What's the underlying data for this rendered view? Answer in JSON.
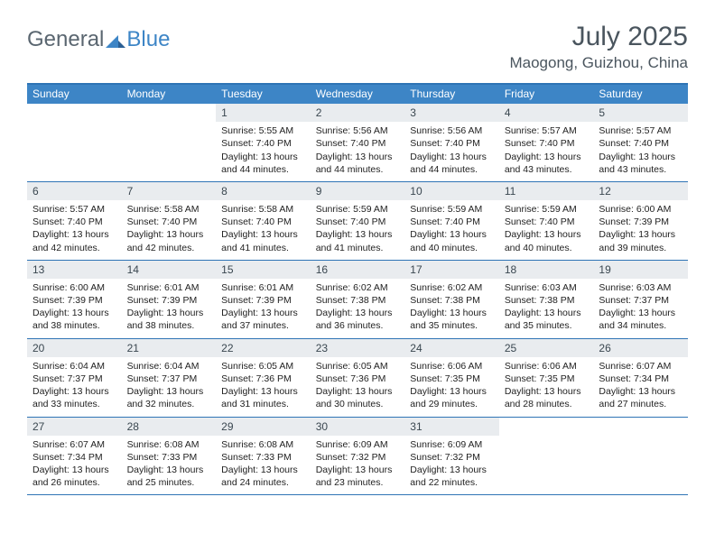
{
  "logo": {
    "part1": "General",
    "part2": "Blue"
  },
  "title": "July 2025",
  "location": "Maogong, Guizhou, China",
  "colors": {
    "header_bg": "#3d85c6",
    "header_text": "#ffffff",
    "daynum_bg": "#e9ecef",
    "border": "#2f74b5",
    "body_text": "#222222",
    "title_text": "#4a555e"
  },
  "day_names": [
    "Sunday",
    "Monday",
    "Tuesday",
    "Wednesday",
    "Thursday",
    "Friday",
    "Saturday"
  ],
  "weeks": [
    [
      null,
      null,
      {
        "n": "1",
        "sr": "5:55 AM",
        "ss": "7:40 PM",
        "dl": "13 hours and 44 minutes."
      },
      {
        "n": "2",
        "sr": "5:56 AM",
        "ss": "7:40 PM",
        "dl": "13 hours and 44 minutes."
      },
      {
        "n": "3",
        "sr": "5:56 AM",
        "ss": "7:40 PM",
        "dl": "13 hours and 44 minutes."
      },
      {
        "n": "4",
        "sr": "5:57 AM",
        "ss": "7:40 PM",
        "dl": "13 hours and 43 minutes."
      },
      {
        "n": "5",
        "sr": "5:57 AM",
        "ss": "7:40 PM",
        "dl": "13 hours and 43 minutes."
      }
    ],
    [
      {
        "n": "6",
        "sr": "5:57 AM",
        "ss": "7:40 PM",
        "dl": "13 hours and 42 minutes."
      },
      {
        "n": "7",
        "sr": "5:58 AM",
        "ss": "7:40 PM",
        "dl": "13 hours and 42 minutes."
      },
      {
        "n": "8",
        "sr": "5:58 AM",
        "ss": "7:40 PM",
        "dl": "13 hours and 41 minutes."
      },
      {
        "n": "9",
        "sr": "5:59 AM",
        "ss": "7:40 PM",
        "dl": "13 hours and 41 minutes."
      },
      {
        "n": "10",
        "sr": "5:59 AM",
        "ss": "7:40 PM",
        "dl": "13 hours and 40 minutes."
      },
      {
        "n": "11",
        "sr": "5:59 AM",
        "ss": "7:40 PM",
        "dl": "13 hours and 40 minutes."
      },
      {
        "n": "12",
        "sr": "6:00 AM",
        "ss": "7:39 PM",
        "dl": "13 hours and 39 minutes."
      }
    ],
    [
      {
        "n": "13",
        "sr": "6:00 AM",
        "ss": "7:39 PM",
        "dl": "13 hours and 38 minutes."
      },
      {
        "n": "14",
        "sr": "6:01 AM",
        "ss": "7:39 PM",
        "dl": "13 hours and 38 minutes."
      },
      {
        "n": "15",
        "sr": "6:01 AM",
        "ss": "7:39 PM",
        "dl": "13 hours and 37 minutes."
      },
      {
        "n": "16",
        "sr": "6:02 AM",
        "ss": "7:38 PM",
        "dl": "13 hours and 36 minutes."
      },
      {
        "n": "17",
        "sr": "6:02 AM",
        "ss": "7:38 PM",
        "dl": "13 hours and 35 minutes."
      },
      {
        "n": "18",
        "sr": "6:03 AM",
        "ss": "7:38 PM",
        "dl": "13 hours and 35 minutes."
      },
      {
        "n": "19",
        "sr": "6:03 AM",
        "ss": "7:37 PM",
        "dl": "13 hours and 34 minutes."
      }
    ],
    [
      {
        "n": "20",
        "sr": "6:04 AM",
        "ss": "7:37 PM",
        "dl": "13 hours and 33 minutes."
      },
      {
        "n": "21",
        "sr": "6:04 AM",
        "ss": "7:37 PM",
        "dl": "13 hours and 32 minutes."
      },
      {
        "n": "22",
        "sr": "6:05 AM",
        "ss": "7:36 PM",
        "dl": "13 hours and 31 minutes."
      },
      {
        "n": "23",
        "sr": "6:05 AM",
        "ss": "7:36 PM",
        "dl": "13 hours and 30 minutes."
      },
      {
        "n": "24",
        "sr": "6:06 AM",
        "ss": "7:35 PM",
        "dl": "13 hours and 29 minutes."
      },
      {
        "n": "25",
        "sr": "6:06 AM",
        "ss": "7:35 PM",
        "dl": "13 hours and 28 minutes."
      },
      {
        "n": "26",
        "sr": "6:07 AM",
        "ss": "7:34 PM",
        "dl": "13 hours and 27 minutes."
      }
    ],
    [
      {
        "n": "27",
        "sr": "6:07 AM",
        "ss": "7:34 PM",
        "dl": "13 hours and 26 minutes."
      },
      {
        "n": "28",
        "sr": "6:08 AM",
        "ss": "7:33 PM",
        "dl": "13 hours and 25 minutes."
      },
      {
        "n": "29",
        "sr": "6:08 AM",
        "ss": "7:33 PM",
        "dl": "13 hours and 24 minutes."
      },
      {
        "n": "30",
        "sr": "6:09 AM",
        "ss": "7:32 PM",
        "dl": "13 hours and 23 minutes."
      },
      {
        "n": "31",
        "sr": "6:09 AM",
        "ss": "7:32 PM",
        "dl": "13 hours and 22 minutes."
      },
      null,
      null
    ]
  ],
  "labels": {
    "sunrise": "Sunrise:",
    "sunset": "Sunset:",
    "daylight": "Daylight:"
  }
}
